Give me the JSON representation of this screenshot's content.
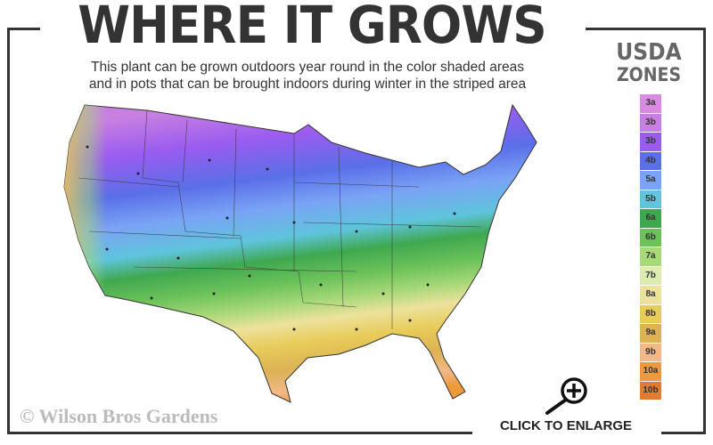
{
  "header": {
    "title": "WHERE IT GROWS",
    "subtitle_line1": "This plant can be grown outdoors year round in the color shaded areas",
    "subtitle_line2": "and in pots that can be brought indoors during winter in the striped area"
  },
  "legend": {
    "title_line1": "USDA",
    "title_line2": "ZONES",
    "zones": [
      {
        "label": "3a",
        "color": "#d98be3"
      },
      {
        "label": "3b",
        "color": "#c77fe0"
      },
      {
        "label": "3b",
        "color": "#9a5cf0"
      },
      {
        "label": "4b",
        "color": "#5a6fe8"
      },
      {
        "label": "5a",
        "color": "#7aa3f5"
      },
      {
        "label": "5b",
        "color": "#5fc4dc"
      },
      {
        "label": "6a",
        "color": "#3fa84f"
      },
      {
        "label": "6b",
        "color": "#6cc25a"
      },
      {
        "label": "7a",
        "color": "#a8d878"
      },
      {
        "label": "7b",
        "color": "#dcebb0"
      },
      {
        "label": "8a",
        "color": "#ece29c"
      },
      {
        "label": "8b",
        "color": "#e8cc5a"
      },
      {
        "label": "9a",
        "color": "#dcb254"
      },
      {
        "label": "9b",
        "color": "#f2b888"
      },
      {
        "label": "10a",
        "color": "#ec9a3c"
      },
      {
        "label": "10b",
        "color": "#e07c30"
      }
    ]
  },
  "watermark": "© Wilson Bros Gardens",
  "enlarge_label": "CLICK TO ENLARGE",
  "icons": {
    "enlarge": "magnifier-plus-icon"
  }
}
